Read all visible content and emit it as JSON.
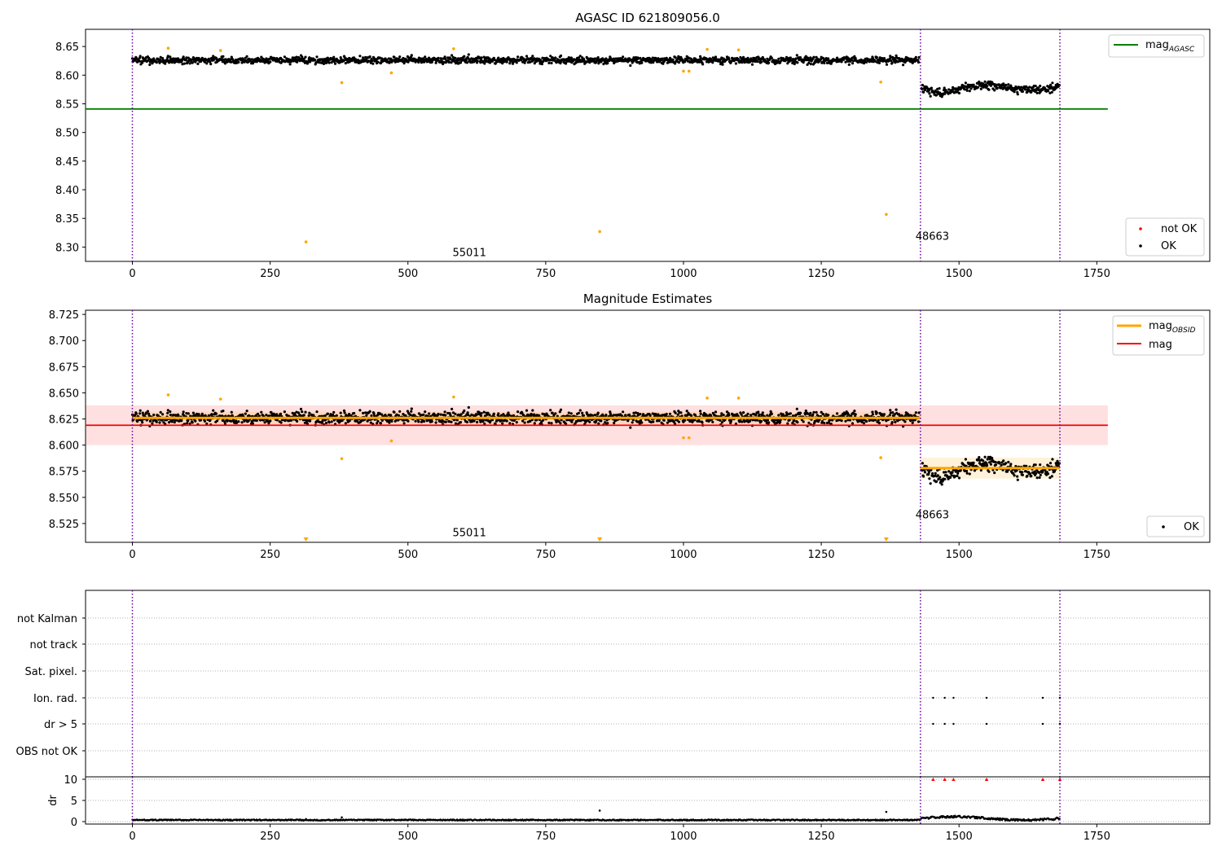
{
  "chart_data": [
    {
      "type": "scatter",
      "title": "AGASC ID 621809056.0",
      "xlabel": "",
      "ylabel": "",
      "xlim": [
        -85,
        1955
      ],
      "ylim": [
        8.275,
        8.68
      ],
      "xticks": [
        "0",
        "250",
        "500",
        "750",
        "1000",
        "1250",
        "1500",
        "1750"
      ],
      "yticks": [
        "8.65",
        "8.60",
        "8.55",
        "8.50",
        "8.45",
        "8.40",
        "8.35",
        "8.30"
      ],
      "legend_lines": [
        {
          "label": "mag",
          "sub": "AGASC",
          "color": "#008000"
        }
      ],
      "legend_markers": [
        {
          "label": "not OK",
          "color": "#ff0000"
        },
        {
          "label": "OK",
          "color": "#000000"
        }
      ],
      "obsid_labels": [
        {
          "text": "55011",
          "x": 715,
          "y": 8.29
        },
        {
          "text": "48663",
          "x": 1555,
          "y": 8.318
        }
      ],
      "vlines": [
        0,
        1430,
        1683
      ],
      "series": [
        {
          "name": "mag_agasc_line",
          "x": [
            0,
            1770
          ],
          "y": [
            8.541,
            8.541
          ],
          "color": "#008000"
        },
        {
          "name": "ok_segment_1",
          "x_range": [
            0,
            1428
          ],
          "mean": 8.626,
          "spread": 0.008,
          "color": "#000000"
        },
        {
          "name": "ok_segment_2",
          "x_range": [
            1432,
            1683
          ],
          "mean": 8.578,
          "spread": 0.01,
          "color": "#000000"
        },
        {
          "name": "outliers",
          "x": [
            65,
            160,
            315,
            380,
            470,
            583,
            848,
            1000,
            1010,
            1043,
            1100,
            1358,
            1368
          ],
          "y": [
            8.647,
            8.643,
            8.309,
            8.587,
            8.604,
            8.646,
            8.327,
            8.607,
            8.607,
            8.645,
            8.644,
            8.588,
            8.357
          ],
          "color": "#ffa500"
        }
      ],
      "grid": false,
      "legend_placement": [
        "upper-right",
        "lower-right"
      ]
    },
    {
      "type": "scatter",
      "title": "Magnitude Estimates",
      "xlabel": "",
      "ylabel": "",
      "xlim": [
        -85,
        1955
      ],
      "ylim": [
        8.507,
        8.729
      ],
      "xticks": [
        "0",
        "250",
        "500",
        "750",
        "1000",
        "1250",
        "1500",
        "1750"
      ],
      "yticks": [
        "8.725",
        "8.700",
        "8.675",
        "8.650",
        "8.625",
        "8.600",
        "8.575",
        "8.550",
        "8.525"
      ],
      "legend_lines": [
        {
          "label": "mag",
          "sub": "OBSID",
          "color": "#ffa500"
        },
        {
          "label": "mag",
          "sub": "",
          "color": "#ff0000"
        }
      ],
      "legend_markers": [
        {
          "label": "OK",
          "color": "#000000"
        }
      ],
      "obsid_labels": [
        {
          "text": "55011",
          "x": 715,
          "y": 8.516
        },
        {
          "text": "48663",
          "x": 1555,
          "y": 8.533
        }
      ],
      "vlines": [
        0,
        1430,
        1683
      ],
      "mean_band": {
        "x_range": [
          -85,
          1770
        ],
        "y_range": [
          8.6,
          8.638
        ],
        "center": 8.619,
        "color": "#ff0000"
      },
      "obsid_bands": [
        {
          "x_range": [
            0,
            1430
          ],
          "y_range": [
            8.62,
            8.632
          ],
          "center": 8.626
        },
        {
          "x_range": [
            1430,
            1683
          ],
          "y_range": [
            8.568,
            8.588
          ],
          "center": 8.578
        }
      ],
      "series": [
        {
          "name": "ok_segment_1",
          "x_range": [
            0,
            1428
          ],
          "mean": 8.626,
          "spread": 0.008,
          "color": "#000000"
        },
        {
          "name": "ok_segment_2",
          "x_range": [
            1432,
            1683
          ],
          "mean": 8.578,
          "spread": 0.01,
          "color": "#000000"
        },
        {
          "name": "outliers",
          "x": [
            65,
            160,
            380,
            470,
            583,
            1000,
            1010,
            1043,
            1100,
            1358
          ],
          "y": [
            8.648,
            8.644,
            8.587,
            8.604,
            8.646,
            8.607,
            8.607,
            8.645,
            8.645,
            8.588
          ],
          "color": "#ffa500"
        },
        {
          "name": "below_range",
          "x": [
            315,
            848,
            1368
          ],
          "color": "#ffa500"
        }
      ],
      "grid": false,
      "legend_placement": [
        "upper-right",
        "lower-right"
      ]
    },
    {
      "type": "scatter",
      "title": "",
      "xlim": [
        -85,
        1955
      ],
      "xticks": [
        "0",
        "250",
        "500",
        "750",
        "1000",
        "1250",
        "1500",
        "1750"
      ],
      "flag_rows": [
        "not Kalman",
        "not track",
        "Sat. pixel.",
        "Ion. rad.",
        "dr > 5",
        "OBS not OK"
      ],
      "flag_points": {
        "Ion. rad.": [
          1453,
          1474,
          1490,
          1550,
          1652,
          1683
        ],
        "dr > 5": [
          1453,
          1474,
          1490,
          1550,
          1652,
          1683
        ]
      },
      "vlines": [
        0,
        1430,
        1683
      ],
      "grid": true
    },
    {
      "type": "scatter",
      "title": "",
      "ylabel": "dr",
      "xlim": [
        -85,
        1955
      ],
      "ylim": [
        0,
        10
      ],
      "yticks": [
        "10",
        "5",
        "0"
      ],
      "xticks": [
        "0",
        "250",
        "500",
        "750",
        "1000",
        "1250",
        "1500",
        "1750"
      ],
      "vlines": [
        0,
        1430,
        1683
      ],
      "dr_capped_x": [
        1453,
        1474,
        1490,
        1550,
        1652,
        1683
      ],
      "dr_outliers": [
        {
          "x": 315,
          "y": 0.6
        },
        {
          "x": 380,
          "y": 1.0
        },
        {
          "x": 848,
          "y": 2.6
        },
        {
          "x": 1368,
          "y": 2.3
        }
      ],
      "grid": true
    }
  ]
}
